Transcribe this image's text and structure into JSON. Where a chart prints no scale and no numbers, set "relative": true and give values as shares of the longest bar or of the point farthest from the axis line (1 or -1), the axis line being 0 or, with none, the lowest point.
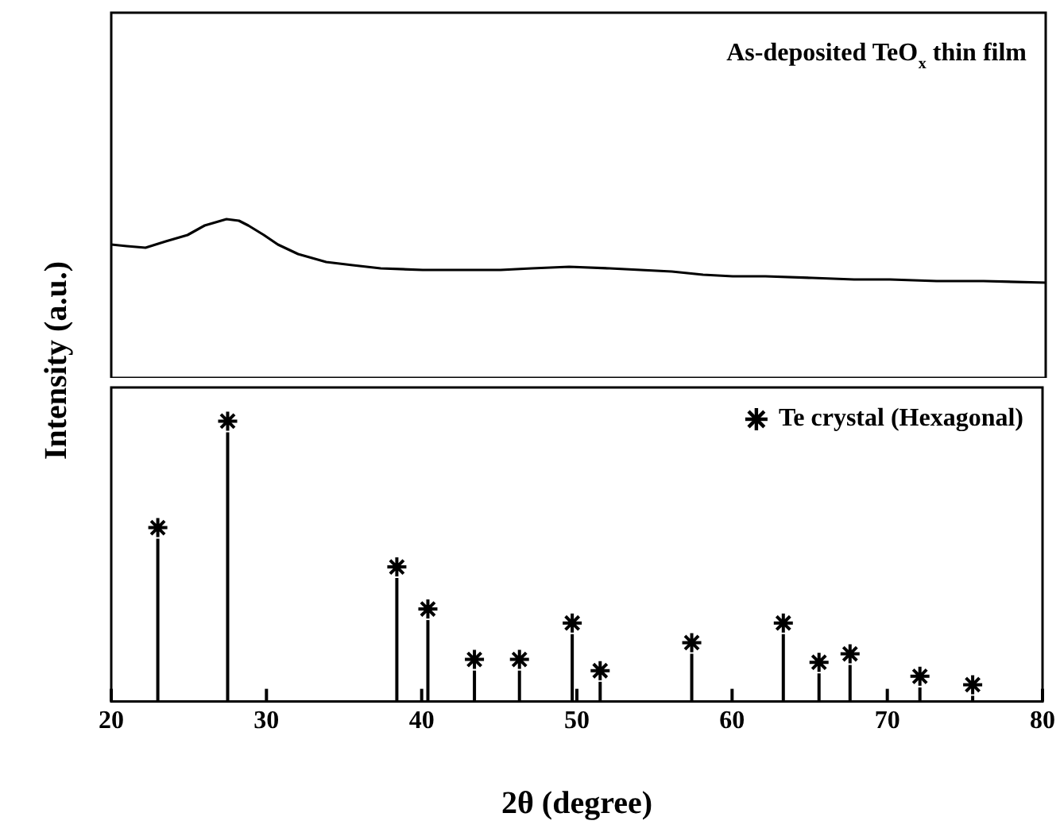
{
  "chart_data": [
    {
      "type": "line",
      "relative": true,
      "xlim": [
        20,
        80
      ],
      "tick_labels": false,
      "grid": false,
      "marker": "none",
      "ylabel": "Intensity (a.u.)",
      "annotations": [
        "As-deposited TeO$_{x}$ thin film"
      ],
      "series": [
        {
          "color": "#000000",
          "x": [
            20,
            21,
            22.2,
            23.5,
            24.9,
            26,
            27.4,
            28.2,
            28.8,
            29.8,
            30.7,
            32,
            33.8,
            35.5,
            37.3,
            40,
            42.4,
            45,
            47,
            49.4,
            52,
            54,
            56,
            58,
            59.9,
            62,
            65,
            67.7,
            70,
            73,
            76,
            80
          ],
          "values": [
            0.84,
            0.83,
            0.82,
            0.86,
            0.9,
            0.96,
            1.0,
            0.99,
            0.96,
            0.9,
            0.84,
            0.78,
            0.73,
            0.71,
            0.69,
            0.68,
            0.68,
            0.68,
            0.69,
            0.7,
            0.69,
            0.68,
            0.67,
            0.65,
            0.64,
            0.64,
            0.63,
            0.62,
            0.62,
            0.61,
            0.61,
            0.6
          ]
        }
      ]
    },
    {
      "type": "lollipop",
      "relative": true,
      "xlim": [
        20,
        80
      ],
      "xticks": [
        20,
        30,
        40,
        50,
        60,
        70,
        80
      ],
      "tick_labels": "x",
      "grid": false,
      "legend": "top right",
      "marker": "cross",
      "xlabel": "2θ (degree)",
      "series": [
        {
          "name": "Te crystal (Hexagonal)",
          "color": "#000000",
          "x": [
            23.0,
            27.5,
            38.4,
            40.4,
            43.4,
            46.3,
            49.7,
            51.5,
            57.4,
            63.3,
            65.6,
            67.6,
            72.1,
            75.5
          ],
          "values": [
            0.62,
            1,
            0.48,
            0.33,
            0.15,
            0.15,
            0.28,
            0.11,
            0.21,
            0.28,
            0.14,
            0.17,
            0.09,
            0.06
          ]
        }
      ]
    }
  ]
}
